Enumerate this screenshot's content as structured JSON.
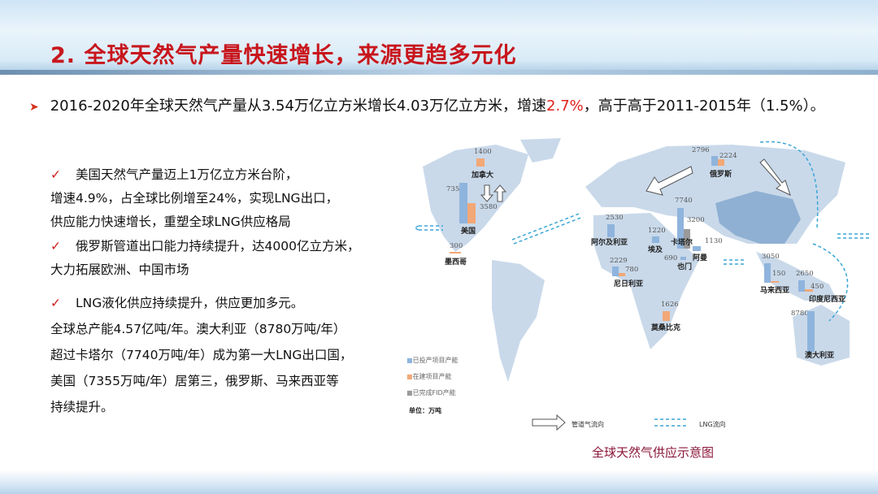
{
  "title": "2. 全球天然气产量快速增长，来源更趋多元化",
  "lead": {
    "pre": "2016-2020年全球天然气产量从3.54万亿立方米增长4.03万亿立方米，增速",
    "highlight": "2.7%",
    "post": "，高于高于2011-2015年（1.5%）。"
  },
  "bullets": [
    "美国天然气产量迈上1万亿立方米台阶，",
    "增速4.9%，占全球比例增至24%，实现LNG出口，",
    "供应能力快速增长，重塑全球LNG供应格局",
    "俄罗斯管道出口能力持续提升，达4000亿立方米，",
    "大力拓展欧洲、中国市场",
    "LNG液化供应持续提升，供应更加多元。",
    "全球总产能4.57亿吨/年。澳大利亚（8780万吨/年）",
    "超过卡塔尔（7740万吨/年）成为第一大LNG出口国，",
    "美国（7355万吨/年）居第三，俄罗斯、马来西亚等",
    "持续提升。"
  ],
  "check": "✓",
  "map": {
    "countries": [
      {
        "name": "加拿大",
        "operating": null,
        "construction": 1400,
        "fid": null
      },
      {
        "name": "美国",
        "operating": 7355,
        "construction": 3580,
        "fid": null
      },
      {
        "name": "墨西哥",
        "operating": null,
        "construction": 300,
        "fid": null
      },
      {
        "name": "俄罗斯",
        "operating": 2796,
        "construction": 2224,
        "fid": null
      },
      {
        "name": "阿尔及利亚",
        "operating": 2530,
        "construction": null,
        "fid": null
      },
      {
        "name": "埃及",
        "operating": 1220,
        "construction": null,
        "fid": null
      },
      {
        "name": "卡塔尔",
        "operating": 7740,
        "construction": null,
        "fid": 3200
      },
      {
        "name": "阿曼",
        "operating": 1130,
        "construction": null,
        "fid": null
      },
      {
        "name": "也门",
        "operating": 690,
        "construction": null,
        "fid": null
      },
      {
        "name": "尼日利亚",
        "operating": 2229,
        "construction": 780,
        "fid": null
      },
      {
        "name": "马来西亚",
        "operating": 3050,
        "construction": 150,
        "fid": null
      },
      {
        "name": "印度尼西亚",
        "operating": 2650,
        "construction": 450,
        "fid": null
      },
      {
        "name": "莫桑比克",
        "operating": null,
        "construction": 1626,
        "fid": null
      },
      {
        "name": "澳大利亚",
        "operating": 8780,
        "construction": null,
        "fid": null
      }
    ],
    "legend": [
      "已投产项目产能",
      "在建项目产能",
      "已完成FID产能"
    ],
    "unit": "单位：万吨",
    "pipeline_label": "管道气流向",
    "lng_label": "LNG流向",
    "colors": {
      "operating": "#8fb4dd",
      "construction": "#f2a877",
      "fid": "#9a9a9a",
      "land": "#c9d9ea",
      "china": "#8fb0d3"
    }
  },
  "caption": "全球天然气供应示意图"
}
